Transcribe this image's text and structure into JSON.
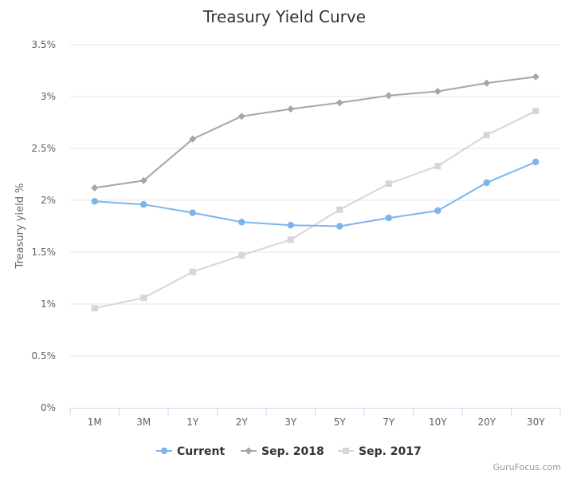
{
  "chart_data": {
    "type": "line",
    "title": "Treasury Yield Curve",
    "xlabel": "",
    "ylabel": "Treasury yield %",
    "categories": [
      "1M",
      "3M",
      "1Y",
      "2Y",
      "3Y",
      "5Y",
      "7Y",
      "10Y",
      "20Y",
      "30Y"
    ],
    "ylim": [
      0,
      3.5
    ],
    "yticks": [
      0,
      0.5,
      1,
      1.5,
      2,
      2.5,
      3,
      3.5
    ],
    "ytick_labels": [
      "0%",
      "0.5%",
      "1%",
      "1.5%",
      "2%",
      "2.5%",
      "3%",
      "3.5%"
    ],
    "grid": true,
    "legend_position": "bottom",
    "series": [
      {
        "name": "Current",
        "color": "#7cb5ec",
        "marker": "circle",
        "values": [
          1.99,
          1.96,
          1.88,
          1.79,
          1.76,
          1.75,
          1.83,
          1.9,
          2.17,
          2.37
        ]
      },
      {
        "name": "Sep. 2018",
        "color": "#a6a6a6",
        "marker": "diamond",
        "values": [
          2.12,
          2.19,
          2.59,
          2.81,
          2.88,
          2.94,
          3.01,
          3.05,
          3.13,
          3.19
        ]
      },
      {
        "name": "Sep. 2017",
        "color": "#d6d6d6",
        "marker": "square",
        "values": [
          0.96,
          1.06,
          1.31,
          1.47,
          1.62,
          1.91,
          2.16,
          2.33,
          2.63,
          2.86
        ]
      }
    ]
  },
  "credit": "GuruFocus.com"
}
